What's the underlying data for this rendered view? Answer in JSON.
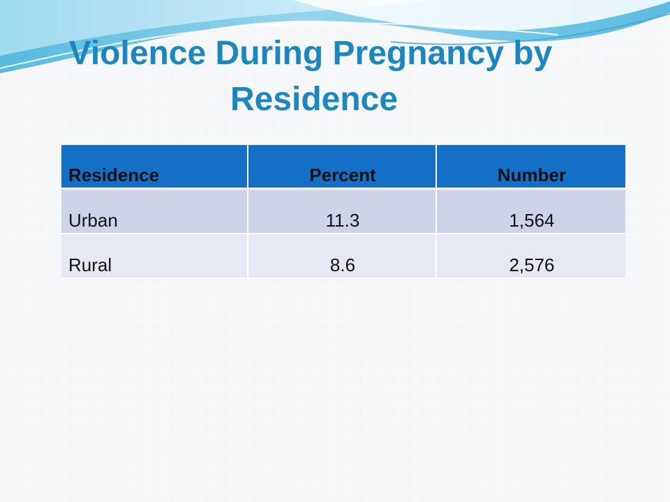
{
  "slide": {
    "title_line1": "Violence During Pregnancy by",
    "title_line2": "Residence"
  },
  "table": {
    "headers": [
      "Residence",
      "Percent",
      "Number"
    ],
    "rows": [
      [
        "Urban",
        "11.3",
        "1,564"
      ],
      [
        "Rural",
        "8.6",
        "2,576"
      ]
    ]
  },
  "colors": {
    "title": "#1a86c2",
    "header_bg": "#1470c6",
    "row_odd": "#cdd4ea",
    "row_even": "#e6e9f5",
    "wave_dark": "#2ea3d4",
    "wave_light": "#9fdcef"
  }
}
